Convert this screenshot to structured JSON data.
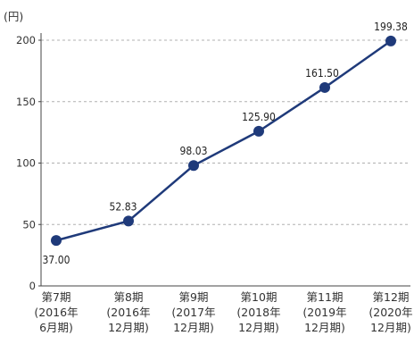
{
  "chart_data": {
    "type": "line",
    "title": "",
    "xlabel": "",
    "ylabel": "(円)",
    "ylim": [
      0,
      210
    ],
    "yticks": [
      0,
      50,
      100,
      150,
      200
    ],
    "grid": true,
    "categories": [
      [
        "第7期",
        "(2016年",
        "6月期)"
      ],
      [
        "第8期",
        "(2016年",
        "12月期)"
      ],
      [
        "第9期",
        "(2017年",
        "12月期)"
      ],
      [
        "第10期",
        "(2018年",
        "12月期)"
      ],
      [
        "第11期",
        "(2019年",
        "12月期)"
      ],
      [
        "第12期",
        "(2020年",
        "12月期)"
      ]
    ],
    "series": [
      {
        "values": [
          37.0,
          52.83,
          98.03,
          125.9,
          161.5,
          199.38
        ],
        "value_labels": [
          "37.00",
          "52.83",
          "98.03",
          "125.90",
          "161.50",
          "199.38"
        ]
      }
    ],
    "colors": {
      "line": "#1f3a7a",
      "marker": "#1f3a7a",
      "grid": "#b0b0b0",
      "axis": "#444444"
    }
  }
}
